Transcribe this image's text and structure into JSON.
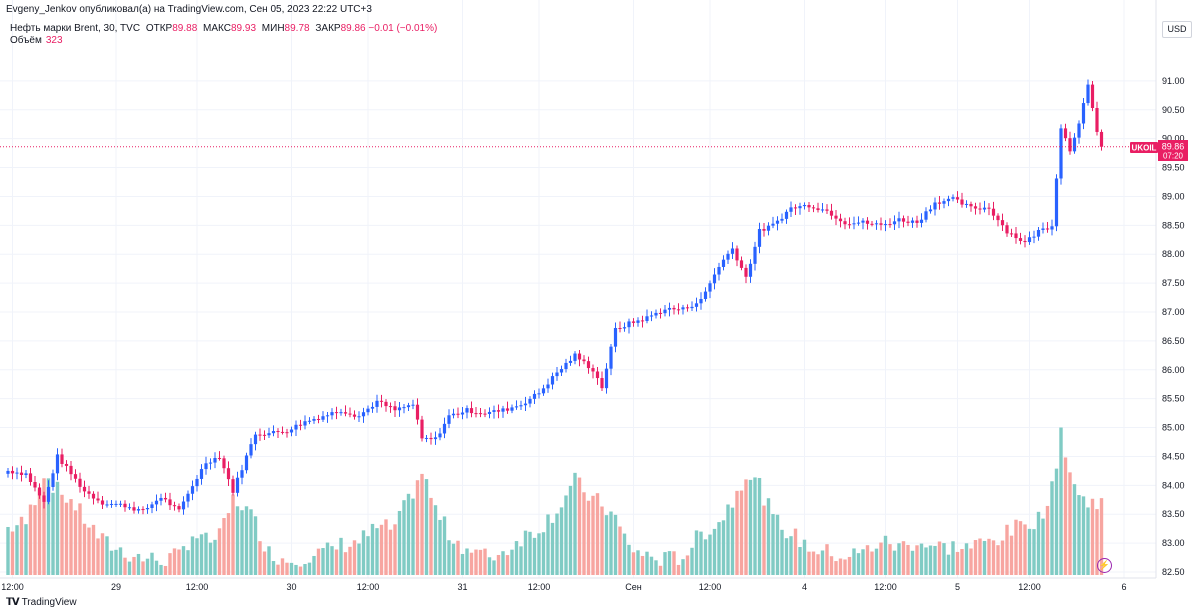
{
  "header": {
    "published": "Evgeny_Jenkov опубликовал(а) на TradingView.com, Сен 05, 2023 22:22 UTC+3",
    "symbol": "Нефть марки Brent, 30, TVC",
    "open_label": "ОТКР",
    "open_value": "89.88",
    "high_label": "МАКС",
    "high_value": "89.93",
    "low_label": "МИН",
    "low_value": "89.78",
    "close_label": "ЗАКР",
    "close_value": "89.86",
    "change": "−0.01 (−0.01%)",
    "volume_label": "Объём",
    "volume_value": "323"
  },
  "currency_button": "USD",
  "price_tag": {
    "ticker": "UKOIL",
    "price": "89.86",
    "countdown": "07:20"
  },
  "footer": {
    "logo": "𝗧𝗩",
    "brand": "TradingView"
  },
  "colors": {
    "up": "#2962ff",
    "down": "#e91e63",
    "vol_up": "#80cbc4",
    "vol_down": "#f7a5a0",
    "grid": "#f0f3fa"
  },
  "icons": {
    "replay": "lightning-icon"
  },
  "chart_data": {
    "type": "candlestick",
    "ylim": [
      82.5,
      91.5
    ],
    "yticks": [
      "82.50",
      "83.00",
      "83.50",
      "84.00",
      "84.50",
      "85.00",
      "85.50",
      "86.00",
      "86.50",
      "87.00",
      "87.50",
      "88.00",
      "88.50",
      "89.00",
      "89.50",
      "90.00",
      "90.50",
      "91.00"
    ],
    "last_price": 89.86,
    "xlim": [
      0,
      243
    ],
    "xticks": [
      {
        "label": "12:00",
        "i": 1
      },
      {
        "label": "29",
        "i": 24
      },
      {
        "label": "12:00",
        "i": 42
      },
      {
        "label": "30",
        "i": 63
      },
      {
        "label": "12:00",
        "i": 80
      },
      {
        "label": "31",
        "i": 101
      },
      {
        "label": "12:00",
        "i": 118
      },
      {
        "label": "Сен",
        "i": 139
      },
      {
        "label": "12:00",
        "i": 156
      },
      {
        "label": "4",
        "i": 177
      },
      {
        "label": "12:00",
        "i": 195
      },
      {
        "label": "5",
        "i": 211
      },
      {
        "label": "12:00",
        "i": 227
      },
      {
        "label": "6",
        "i": 248
      }
    ],
    "anchors": [
      [
        0,
        84.25,
        25
      ],
      [
        4,
        84.2,
        28
      ],
      [
        8,
        83.7,
        55
      ],
      [
        11,
        84.5,
        45
      ],
      [
        14,
        84.2,
        40
      ],
      [
        17,
        83.9,
        30
      ],
      [
        21,
        83.7,
        18
      ],
      [
        26,
        83.65,
        12
      ],
      [
        30,
        83.55,
        9
      ],
      [
        34,
        83.8,
        8
      ],
      [
        38,
        83.55,
        10
      ],
      [
        41,
        84.0,
        22
      ],
      [
        44,
        84.4,
        18
      ],
      [
        47,
        84.5,
        20
      ],
      [
        50,
        83.9,
        40
      ],
      [
        52,
        84.3,
        38
      ],
      [
        55,
        84.9,
        28
      ],
      [
        58,
        84.9,
        12
      ],
      [
        62,
        84.95,
        8
      ],
      [
        66,
        85.1,
        10
      ],
      [
        70,
        85.2,
        12
      ],
      [
        74,
        85.3,
        16
      ],
      [
        78,
        85.2,
        18
      ],
      [
        82,
        85.45,
        25
      ],
      [
        86,
        85.3,
        25
      ],
      [
        90,
        85.4,
        45
      ],
      [
        92,
        84.8,
        55
      ],
      [
        95,
        84.8,
        35
      ],
      [
        98,
        85.2,
        22
      ],
      [
        102,
        85.3,
        14
      ],
      [
        106,
        85.25,
        10
      ],
      [
        110,
        85.3,
        12
      ],
      [
        114,
        85.4,
        20
      ],
      [
        118,
        85.6,
        25
      ],
      [
        122,
        85.95,
        35
      ],
      [
        126,
        86.25,
        50
      ],
      [
        130,
        86.0,
        40
      ],
      [
        132,
        85.7,
        38
      ],
      [
        135,
        86.7,
        30
      ],
      [
        138,
        86.8,
        15
      ],
      [
        142,
        86.9,
        10
      ],
      [
        146,
        87.05,
        8
      ],
      [
        150,
        87.05,
        10
      ],
      [
        154,
        87.2,
        22
      ],
      [
        158,
        87.8,
        28
      ],
      [
        161,
        88.1,
        40
      ],
      [
        164,
        87.6,
        55
      ],
      [
        167,
        88.4,
        48
      ],
      [
        170,
        88.5,
        30
      ],
      [
        174,
        88.8,
        22
      ],
      [
        178,
        88.85,
        15
      ],
      [
        182,
        88.75,
        12
      ],
      [
        186,
        88.55,
        10
      ],
      [
        190,
        88.55,
        12
      ],
      [
        194,
        88.5,
        18
      ],
      [
        198,
        88.6,
        15
      ],
      [
        202,
        88.55,
        18
      ],
      [
        206,
        88.9,
        15
      ],
      [
        210,
        88.95,
        15
      ],
      [
        214,
        88.8,
        15
      ],
      [
        218,
        88.8,
        18
      ],
      [
        222,
        88.4,
        22
      ],
      [
        226,
        88.2,
        28
      ],
      [
        229,
        88.4,
        30
      ],
      [
        232,
        88.5,
        45
      ],
      [
        234,
        90.2,
        78
      ],
      [
        236,
        89.8,
        55
      ],
      [
        238,
        90.3,
        42
      ],
      [
        240,
        90.9,
        38
      ],
      [
        242,
        90.1,
        40
      ],
      [
        243,
        89.86,
        41
      ]
    ]
  }
}
